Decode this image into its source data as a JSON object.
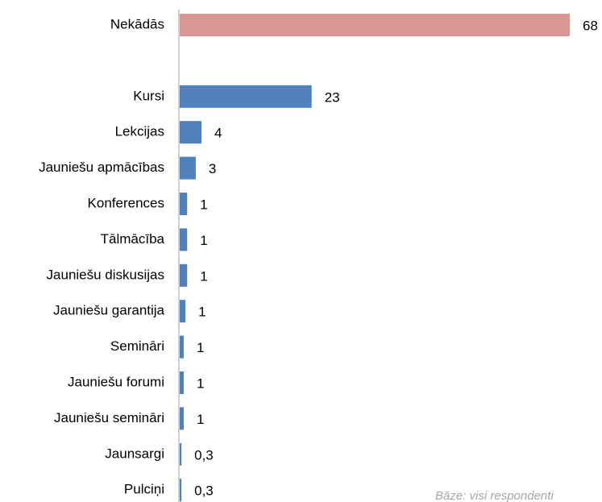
{
  "chart_data": {
    "type": "bar",
    "orientation": "horizontal",
    "categories": [
      "Nekādās",
      null,
      "Kursi",
      "Lekcijas",
      "Jauniešu apmācības",
      "Konferences",
      "Tālmācība",
      "Jauniešu diskusijas",
      "Jauniešu garantija",
      "Semināri",
      "Jauniešu forumi",
      "Jauniešu semināri",
      "Jaunsargi",
      "Pulciņi"
    ],
    "values": [
      68,
      null,
      23,
      3.8,
      2.8,
      1.3,
      1.3,
      1.3,
      1.0,
      0.7,
      0.7,
      0.7,
      0.3,
      0.3
    ],
    "value_labels": [
      "68",
      null,
      "23",
      "4",
      "3",
      "1",
      "1",
      "1",
      "1",
      "1",
      "1",
      "1",
      "0,3",
      "0,3"
    ],
    "colors": [
      "#d99694",
      null,
      "#4f81bd",
      "#4f81bd",
      "#4f81bd",
      "#4f81bd",
      "#4f81bd",
      "#4f81bd",
      "#4f81bd",
      "#4f81bd",
      "#4f81bd",
      "#4f81bd",
      "#4f81bd",
      "#4f81bd"
    ],
    "note": "Bāze: visi respondenti"
  }
}
